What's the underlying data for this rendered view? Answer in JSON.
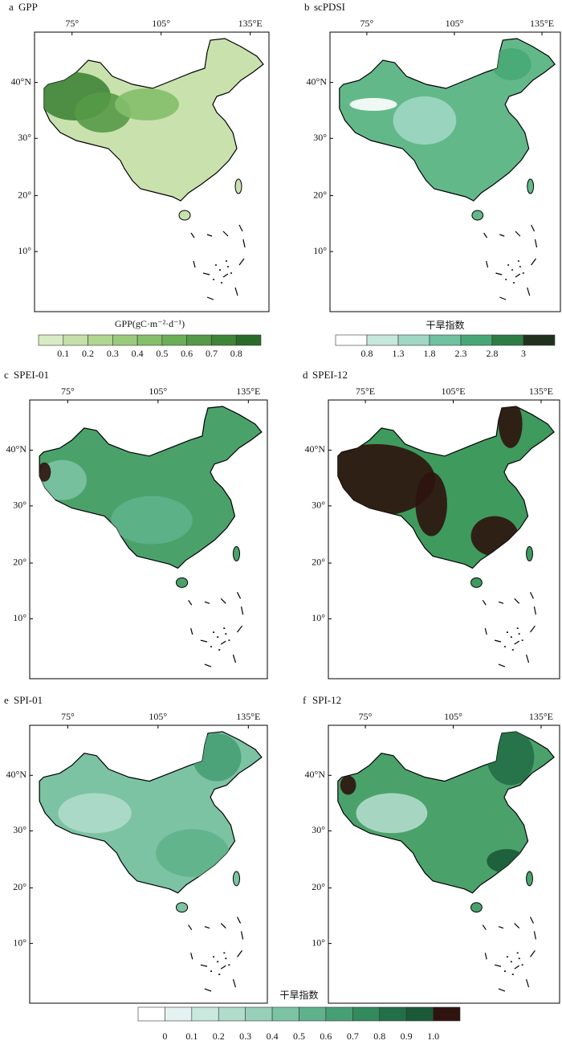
{
  "panels": [
    {
      "letter": "a",
      "title": "GPP",
      "lon_labels": [
        "75°",
        "105°",
        "135°E"
      ],
      "lat_labels": [
        "40°N",
        "30°",
        "20°",
        "10°"
      ]
    },
    {
      "letter": "b",
      "title": "scPDSI",
      "lon_labels": [
        "75°",
        "105°",
        "135°E"
      ],
      "lat_labels": [
        "40°N",
        "30°",
        "20°",
        "10°"
      ]
    },
    {
      "letter": "c",
      "title": "SPEI-01",
      "lon_labels": [
        "75°",
        "105°",
        "135°E"
      ],
      "lat_labels": [
        "40°N",
        "30°",
        "20°",
        "10°"
      ]
    },
    {
      "letter": "d",
      "title": "SPEI-12",
      "lon_labels": [
        "75°E",
        "105°E",
        "135°E"
      ],
      "lat_labels": [
        "40°N",
        "30°",
        "20°",
        "10°"
      ]
    },
    {
      "letter": "e",
      "title": "SPI-01",
      "lon_labels": [
        "75°",
        "105°",
        "135°E"
      ],
      "lat_labels": [
        "40°N",
        "30°",
        "20°",
        "10°"
      ]
    },
    {
      "letter": "f",
      "title": "SPI-12",
      "lon_labels": [
        "75°",
        "105°",
        "135°E"
      ],
      "lat_labels": [
        "40°N",
        "30°",
        "20°",
        "10°"
      ]
    }
  ],
  "colorbars": [
    {
      "title": "GPP(gC·m⁻²·d⁻¹)",
      "colors": [
        "#d9ebc4",
        "#c5e0a9",
        "#b0d68f",
        "#9acb7c",
        "#84bf6a",
        "#6cae58",
        "#559a47",
        "#3f8538",
        "#2b6b2a"
      ],
      "labels": [
        "0.1",
        "0.2",
        "0.3",
        "0.4",
        "0.5",
        "0.6",
        "0.7",
        "0.8"
      ]
    },
    {
      "title": "干旱指数",
      "colors": [
        "#ffffff",
        "#c6e7dc",
        "#9fd7c4",
        "#6fc1a0",
        "#47a877",
        "#2e7d45",
        "#20321f"
      ],
      "labels": [
        "0.8",
        "1.3",
        "1.8",
        "2.3",
        "2.8",
        "3"
      ]
    },
    {
      "title": "干旱指数",
      "colors": [
        "#ffffff",
        "#e4f3f1",
        "#c9e8de",
        "#b0dccb",
        "#96d0b8",
        "#7cc3a3",
        "#5fb28b",
        "#47a074",
        "#338a5d",
        "#236f47",
        "#1a5a37",
        "#2e130e"
      ],
      "labels": [
        "0",
        "0.1",
        "0.2",
        "0.3",
        "0.4",
        "0.5",
        "0.6",
        "0.7",
        "0.8",
        "0.9",
        "1.0"
      ]
    }
  ]
}
